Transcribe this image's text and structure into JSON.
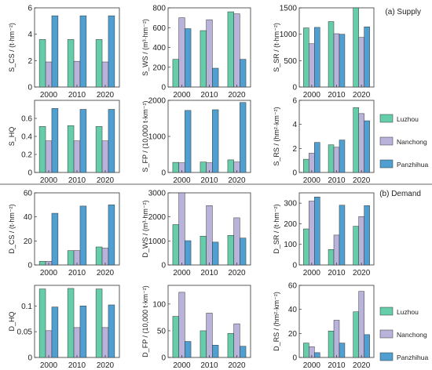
{
  "panels": {
    "supply_label": "(a) Supply",
    "demand_label": "(b) Demand"
  },
  "legend": [
    {
      "name": "Luzhou",
      "color": "#66cdaa"
    },
    {
      "name": "Nanchong",
      "color": "#b9b3db"
    },
    {
      "name": "Panzhihua",
      "color": "#4f9fd1"
    }
  ],
  "chart_data": [
    {
      "id": "S_CS",
      "type": "bar",
      "ylabel": "S_CS / (t·hm⁻²)",
      "categories": [
        "2000",
        "2010",
        "2020"
      ],
      "ylim": [
        0,
        6
      ],
      "yticks": [
        0,
        2,
        4,
        6
      ],
      "series": [
        {
          "name": "Luzhou",
          "values": [
            3.6,
            3.6,
            3.6
          ]
        },
        {
          "name": "Nanchong",
          "values": [
            1.9,
            1.95,
            1.9
          ]
        },
        {
          "name": "Panzhihua",
          "values": [
            5.4,
            5.4,
            5.4
          ]
        }
      ]
    },
    {
      "id": "S_WS",
      "type": "bar",
      "ylabel": "S_WS / (m³·hm⁻²)",
      "categories": [
        "2000",
        "2010",
        "2020"
      ],
      "ylim": [
        0,
        800
      ],
      "yticks": [
        0,
        200,
        400,
        600,
        800
      ],
      "series": [
        {
          "name": "Luzhou",
          "values": [
            280,
            570,
            760
          ]
        },
        {
          "name": "Nanchong",
          "values": [
            700,
            680,
            740
          ]
        },
        {
          "name": "Panzhihua",
          "values": [
            590,
            190,
            280
          ]
        }
      ]
    },
    {
      "id": "S_SR",
      "type": "bar",
      "ylabel": "S_SR / (t·hm⁻²)",
      "categories": [
        "2000",
        "2010",
        "2020"
      ],
      "ylim": [
        0,
        1500
      ],
      "yticks": [
        0,
        500,
        1000,
        1500
      ],
      "series": [
        {
          "name": "Luzhou",
          "values": [
            1120,
            1240,
            1500
          ]
        },
        {
          "name": "Nanchong",
          "values": [
            820,
            1010,
            940
          ]
        },
        {
          "name": "Panzhihua",
          "values": [
            1130,
            1000,
            1140
          ]
        }
      ]
    },
    {
      "id": "S_HQ",
      "type": "bar",
      "ylabel": "S_HQ",
      "categories": [
        "2000",
        "2010",
        "2020"
      ],
      "ylim": [
        0,
        0.8
      ],
      "yticks": [
        0,
        0.2,
        0.4,
        0.6
      ],
      "series": [
        {
          "name": "Luzhou",
          "values": [
            0.51,
            0.52,
            0.51
          ]
        },
        {
          "name": "Nanchong",
          "values": [
            0.35,
            0.35,
            0.35
          ]
        },
        {
          "name": "Panzhihua",
          "values": [
            0.71,
            0.7,
            0.7
          ]
        }
      ]
    },
    {
      "id": "S_FP",
      "type": "bar",
      "ylabel": "S_FP / (10,000 t·km⁻²)",
      "categories": [
        "2000",
        "2010",
        "2020"
      ],
      "ylim": [
        0,
        2000
      ],
      "yticks": [
        0,
        1000,
        2000
      ],
      "series": [
        {
          "name": "Luzhou",
          "values": [
            280,
            290,
            350
          ]
        },
        {
          "name": "Nanchong",
          "values": [
            270,
            270,
            290
          ]
        },
        {
          "name": "Panzhihua",
          "values": [
            1720,
            1740,
            1940
          ]
        }
      ]
    },
    {
      "id": "S_RS",
      "type": "bar",
      "ylabel": "S_RS / (hm²·km⁻²)",
      "categories": [
        "2000",
        "2010",
        "2020"
      ],
      "ylim": [
        0,
        6
      ],
      "yticks": [
        0,
        2,
        4,
        6
      ],
      "series": [
        {
          "name": "Luzhou",
          "values": [
            1.1,
            2.3,
            5.4
          ]
        },
        {
          "name": "Nanchong",
          "values": [
            1.6,
            2.1,
            4.9
          ]
        },
        {
          "name": "Panzhihua",
          "values": [
            2.5,
            2.7,
            4.3
          ]
        }
      ]
    },
    {
      "id": "D_CS",
      "type": "bar",
      "ylabel": "D_CS / (t·hm⁻²)",
      "categories": [
        "2000",
        "2010",
        "2020"
      ],
      "ylim": [
        0,
        60
      ],
      "yticks": [
        0,
        20,
        40,
        60
      ],
      "series": [
        {
          "name": "Luzhou",
          "values": [
            3,
            12,
            15
          ]
        },
        {
          "name": "Nanchong",
          "values": [
            3,
            12,
            14
          ]
        },
        {
          "name": "Panzhihua",
          "values": [
            43,
            49,
            50
          ]
        }
      ]
    },
    {
      "id": "D_WS",
      "type": "bar",
      "ylabel": "D_WS / (m³·hm⁻²)",
      "categories": [
        "2000",
        "2010",
        "2020"
      ],
      "ylim": [
        0,
        3000
      ],
      "yticks": [
        0,
        1000,
        2000,
        3000
      ],
      "series": [
        {
          "name": "Luzhou",
          "values": [
            1680,
            1200,
            1230
          ]
        },
        {
          "name": "Nanchong",
          "values": [
            3000,
            2470,
            1960
          ]
        },
        {
          "name": "Panzhihua",
          "values": [
            1010,
            950,
            1120
          ]
        }
      ]
    },
    {
      "id": "D_SR",
      "type": "bar",
      "ylabel": "D_SR / (t·hm⁻²)",
      "categories": [
        "2000",
        "2010",
        "2020"
      ],
      "ylim": [
        0,
        350
      ],
      "yticks": [
        0,
        100,
        200,
        300
      ],
      "series": [
        {
          "name": "Luzhou",
          "values": [
            175,
            75,
            188
          ]
        },
        {
          "name": "Nanchong",
          "values": [
            310,
            145,
            235
          ]
        },
        {
          "name": "Panzhihua",
          "values": [
            330,
            290,
            288
          ]
        }
      ]
    },
    {
      "id": "D_HQ",
      "type": "bar",
      "ylabel": "D_HQ",
      "categories": [
        "2000",
        "2010",
        "2020"
      ],
      "ylim": [
        0,
        0.14
      ],
      "yticks": [
        0,
        0.05,
        0.1
      ],
      "series": [
        {
          "name": "Luzhou",
          "values": [
            0.133,
            0.134,
            0.133
          ]
        },
        {
          "name": "Nanchong",
          "values": [
            0.052,
            0.058,
            0.058
          ]
        },
        {
          "name": "Panzhihua",
          "values": [
            0.098,
            0.1,
            0.102
          ]
        }
      ]
    },
    {
      "id": "D_FP",
      "type": "bar",
      "ylabel": "D_FP / (10,000 t·km⁻²)",
      "categories": [
        "2000",
        "2010",
        "2020"
      ],
      "ylim": [
        0,
        135
      ],
      "yticks": [
        0,
        50,
        100
      ],
      "series": [
        {
          "name": "Luzhou",
          "values": [
            77,
            50,
            45
          ]
        },
        {
          "name": "Nanchong",
          "values": [
            122,
            83,
            63
          ]
        },
        {
          "name": "Panzhihua",
          "values": [
            30,
            23,
            21
          ]
        }
      ]
    },
    {
      "id": "D_RS",
      "type": "bar",
      "ylabel": "D_RS / (hm²·km⁻²)",
      "categories": [
        "2000",
        "2010",
        "2020"
      ],
      "ylim": [
        0,
        60
      ],
      "yticks": [
        0,
        20,
        40,
        60
      ],
      "series": [
        {
          "name": "Luzhou",
          "values": [
            12,
            22,
            38
          ]
        },
        {
          "name": "Nanchong",
          "values": [
            9,
            31,
            55
          ]
        },
        {
          "name": "Panzhihua",
          "values": [
            4,
            12,
            19
          ]
        }
      ]
    }
  ]
}
